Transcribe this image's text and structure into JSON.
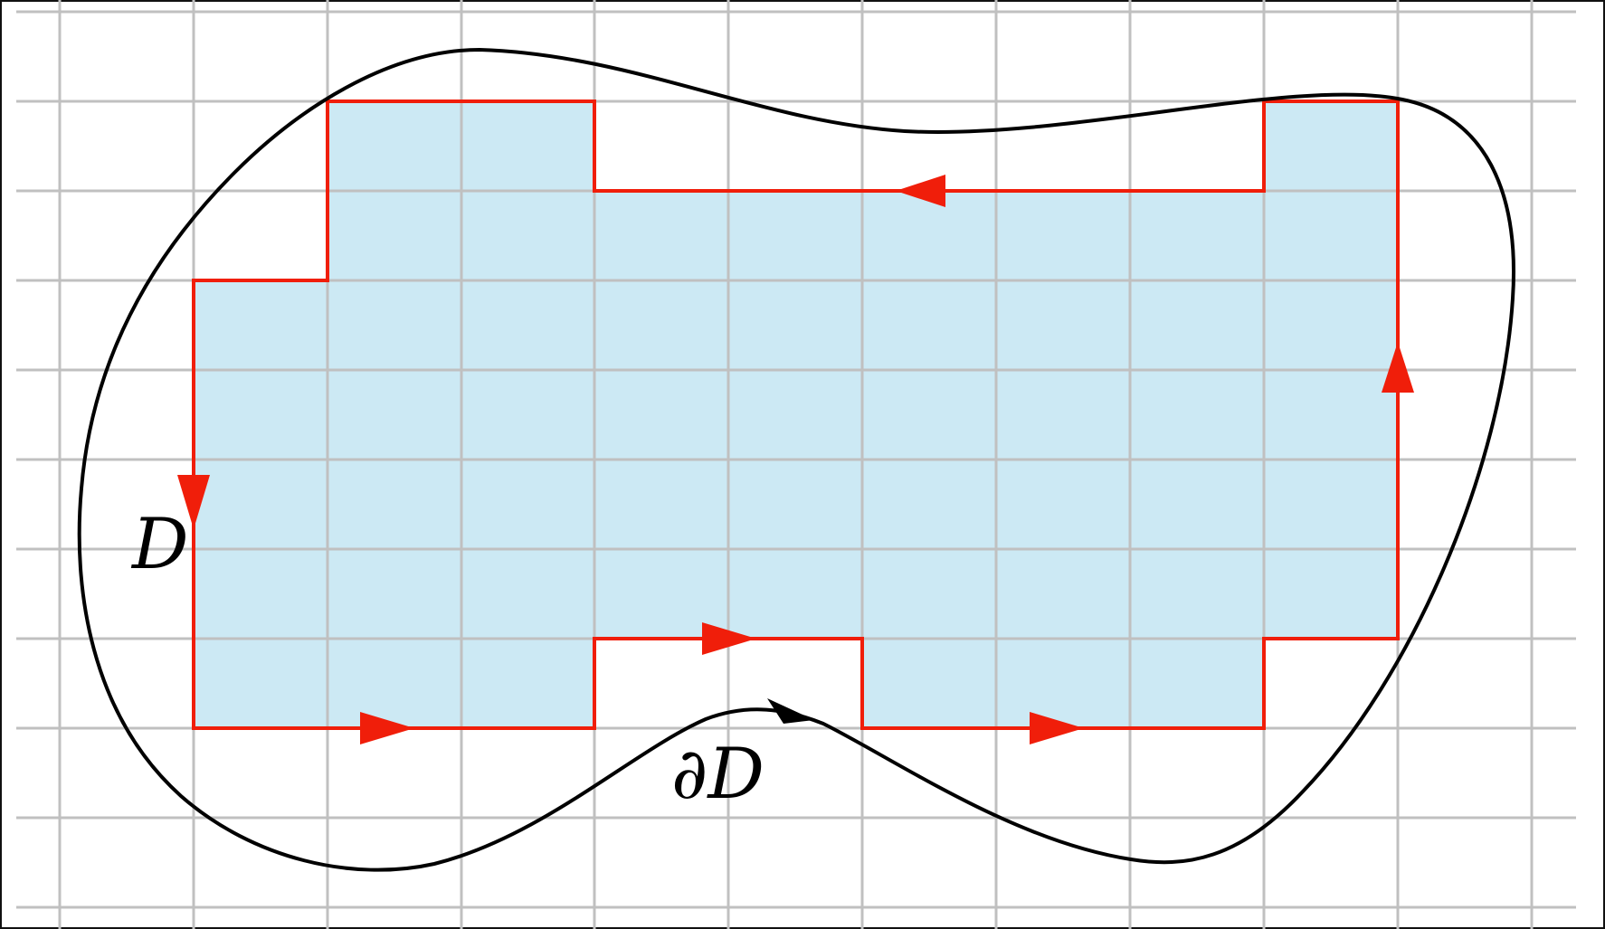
{
  "diagram": {
    "labels": {
      "region": "D",
      "boundary": "∂D"
    },
    "colors": {
      "background": "#ffffff",
      "grid": "#c0c0c0",
      "cell_fill": "#cce9f4",
      "approximation_boundary": "#f01e0a",
      "region_boundary": "#000000"
    },
    "icons": {
      "approximation_direction": "arrowhead",
      "boundary_direction": "arrowhead"
    }
  }
}
